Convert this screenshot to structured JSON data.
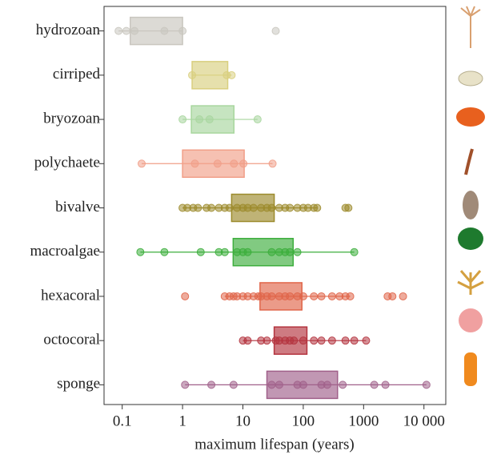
{
  "chart_data": {
    "type": "boxplot",
    "x_label": "maximum lifespan (years)",
    "log_x": true,
    "xlim": [
      0.05,
      23000
    ],
    "xticks": [
      0.1,
      1,
      10,
      100,
      1000,
      {
        "value": 10000,
        "label": "10 000"
      }
    ],
    "categories": [
      "hydrozoan",
      "cirriped",
      "bryozoan",
      "polychaete",
      "bivalve",
      "macroalgae",
      "hexacoral",
      "octocoral",
      "sponge"
    ],
    "series": [
      {
        "color": "#c9c6bf",
        "q1": 0.136,
        "q3": 1,
        "whisker": [
          0.087,
          1
        ],
        "points": [
          0.087,
          0.117,
          0.16,
          0.5,
          1,
          35
        ]
      },
      {
        "color": "#d9cf7f",
        "q1": 1.44,
        "q3": 5.6,
        "whisker": [
          1.44,
          6.5
        ],
        "points": [
          1.44,
          5.4,
          6.5
        ]
      },
      {
        "color": "#a8d69e",
        "q1": 1.4,
        "q3": 7.1,
        "whisker": [
          1,
          17.5
        ],
        "points": [
          1,
          1.9,
          2.8,
          17.5
        ]
      },
      {
        "color": "#f19f88",
        "q1": 1,
        "q3": 10.5,
        "whisker": [
          0.21,
          31
        ],
        "points": [
          0.21,
          1.6,
          3.8,
          7.1,
          10.2,
          31
        ]
      },
      {
        "color": "#9c8b2c",
        "q1": 6.5,
        "q3": 33,
        "whisker": [
          1,
          170
        ],
        "points": [
          1,
          1.2,
          1.5,
          1.8,
          2.5,
          3,
          4,
          5,
          6,
          8,
          10,
          12,
          15,
          20,
          25,
          30,
          40,
          50,
          60,
          80,
          100,
          120,
          150,
          170,
          500,
          560
        ]
      },
      {
        "color": "#3dae3d",
        "q1": 6.9,
        "q3": 68,
        "whisker": [
          0.2,
          700
        ],
        "points": [
          0.2,
          0.5,
          2,
          4,
          5,
          8,
          10,
          12,
          30,
          40,
          50,
          60,
          80,
          700
        ]
      },
      {
        "color": "#e0664a",
        "q1": 19.2,
        "q3": 95,
        "whisker": [
          5,
          600
        ],
        "points": [
          1.1,
          5,
          6,
          7,
          8,
          10,
          12,
          15,
          18,
          20,
          25,
          30,
          40,
          50,
          60,
          80,
          100,
          150,
          200,
          300,
          400,
          500,
          600,
          2500,
          3000,
          4500
        ]
      },
      {
        "color": "#b4343f",
        "q1": 33,
        "q3": 115,
        "whisker": [
          10,
          1100
        ],
        "points": [
          10,
          12,
          20,
          25,
          35,
          40,
          50,
          60,
          70,
          100,
          150,
          200,
          300,
          500,
          700,
          1100
        ]
      },
      {
        "color": "#a0608a",
        "q1": 25,
        "q3": 370,
        "whisker": [
          1.1,
          11000
        ],
        "points": [
          1.1,
          3,
          7,
          30,
          40,
          80,
          100,
          200,
          250,
          450,
          1500,
          2300,
          11000
        ]
      }
    ]
  }
}
